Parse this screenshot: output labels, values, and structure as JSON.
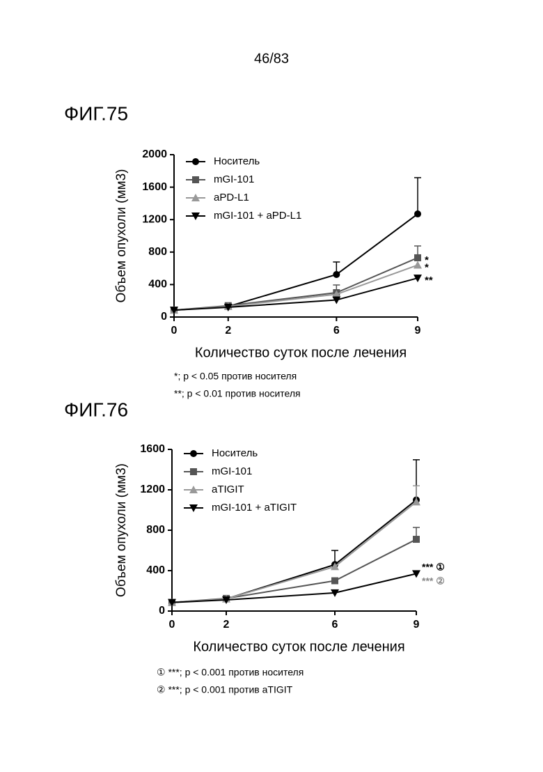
{
  "page_number": "46/83",
  "chart_data": [
    {
      "type": "line",
      "title": "ФИГ.75",
      "x_label": "Количество суток после лечения",
      "y_label": "Объем опухоли (мм3)",
      "x": [
        0,
        2,
        6,
        9
      ],
      "xlim": [
        0,
        9
      ],
      "xticks": [
        0,
        2,
        6,
        9
      ],
      "ylim": [
        0,
        2000
      ],
      "yticks": [
        0,
        400,
        800,
        1200,
        1600,
        2000
      ],
      "series": [
        {
          "name": "Носитель",
          "color": "#000000",
          "marker": "circle",
          "values": [
            85,
            130,
            524,
            1270
          ],
          "errors": [
            null,
            null,
            154,
            447
          ]
        },
        {
          "name": "mGI-101",
          "color": "#555555",
          "marker": "square",
          "values": [
            85,
            140,
            300,
            730
          ],
          "errors": [
            null,
            null,
            95,
            146
          ],
          "significance": "*"
        },
        {
          "name": "aPD-L1",
          "color": "#999999",
          "marker": "triangle-up",
          "values": [
            85,
            130,
            280,
            640
          ],
          "errors": [
            null,
            null,
            null,
            null
          ],
          "significance": "*"
        },
        {
          "name": "mGI-101 + aPD-L1",
          "color": "#000000",
          "marker": "triangle-down",
          "values": [
            85,
            120,
            210,
            480
          ],
          "errors": [
            null,
            null,
            null,
            null
          ],
          "significance": "**"
        }
      ],
      "notes": [
        "*; p < 0.05 против носителя",
        "**; p < 0.01 против носителя"
      ]
    },
    {
      "type": "line",
      "title": "ФИГ.76",
      "x_label": "Количество суток после лечения",
      "y_label": "Объем опухоли (мм3)",
      "x": [
        0,
        2,
        6,
        9
      ],
      "xlim": [
        0,
        9
      ],
      "xticks": [
        0,
        2,
        6,
        9
      ],
      "ylim": [
        0,
        1600
      ],
      "yticks": [
        0,
        400,
        800,
        1200,
        1600
      ],
      "series": [
        {
          "name": "Носитель",
          "color": "#000000",
          "marker": "circle",
          "values": [
            85,
            120,
            460,
            1100
          ],
          "errors": [
            null,
            null,
            140,
            397
          ]
        },
        {
          "name": "mGI-101",
          "color": "#555555",
          "marker": "square",
          "values": [
            85,
            125,
            300,
            710
          ],
          "errors": [
            null,
            null,
            null,
            118
          ]
        },
        {
          "name": "aTIGIT",
          "color": "#999999",
          "marker": "triangle-up",
          "values": [
            85,
            120,
            440,
            1080
          ],
          "errors": [
            null,
            null,
            null,
            160
          ]
        },
        {
          "name": "mGI-101 + aTIGIT",
          "color": "#000000",
          "marker": "triangle-down",
          "values": [
            85,
            110,
            180,
            370
          ],
          "errors": [
            null,
            null,
            null,
            null
          ]
        }
      ],
      "annotations": [
        {
          "text": "*** ①",
          "color": "#000000"
        },
        {
          "text": "*** ②",
          "color": "#888888"
        }
      ],
      "notes": [
        "① ***; p < 0.001 против носителя",
        "② ***; p < 0.001 против aTIGIT"
      ]
    }
  ]
}
